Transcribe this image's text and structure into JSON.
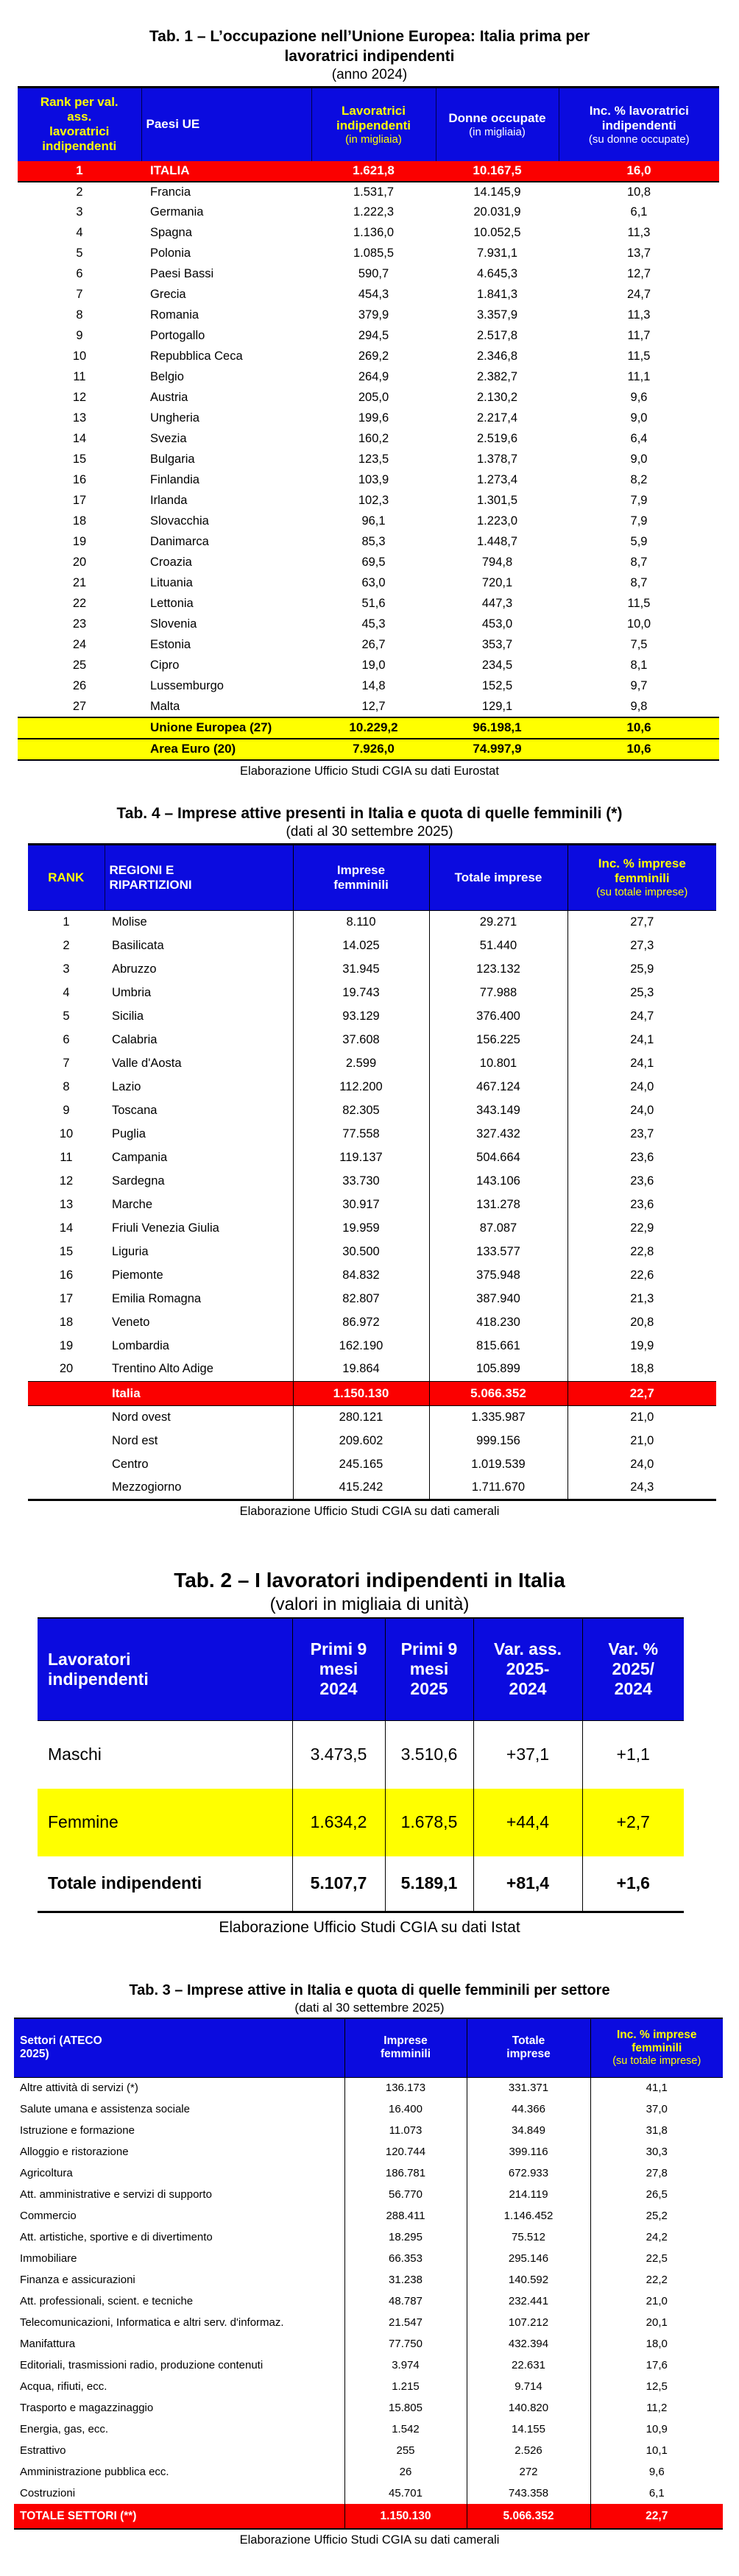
{
  "colors": {
    "blue": "#0b0bdf",
    "red": "#fb0000",
    "yellow": "#ffff00"
  },
  "tab1": {
    "title_line1": "Tab. 1 – L’occupazione nell’Unione Europea: Italia prima per",
    "title_line2": "lavoratrici indipendenti",
    "subtitle": "(anno 2024)",
    "header": {
      "rank": "Rank per val. ass. lavoratrici indipendenti",
      "country": "Paesi UE",
      "col3_main": "Lavoratrici indipendenti",
      "col3_sub": "(in migliaia)",
      "col4_main": "Donne occupate",
      "col4_sub": "(in migliaia)",
      "col5_main": "Inc. % lavoratrici indipendenti",
      "col5_sub": "(su donne occupate)"
    },
    "italia_row": {
      "rank": "1",
      "country": "ITALIA",
      "v1": "1.621,8",
      "v2": "10.167,5",
      "v3": "16,0"
    },
    "rows": [
      [
        "2",
        "Francia",
        "1.531,7",
        "14.145,9",
        "10,8"
      ],
      [
        "3",
        "Germania",
        "1.222,3",
        "20.031,9",
        "6,1"
      ],
      [
        "4",
        "Spagna",
        "1.136,0",
        "10.052,5",
        "11,3"
      ],
      [
        "5",
        "Polonia",
        "1.085,5",
        "7.931,1",
        "13,7"
      ],
      [
        "6",
        "Paesi Bassi",
        "590,7",
        "4.645,3",
        "12,7"
      ],
      [
        "7",
        "Grecia",
        "454,3",
        "1.841,3",
        "24,7"
      ],
      [
        "8",
        "Romania",
        "379,9",
        "3.357,9",
        "11,3"
      ],
      [
        "9",
        "Portogallo",
        "294,5",
        "2.517,8",
        "11,7"
      ],
      [
        "10",
        "Repubblica Ceca",
        "269,2",
        "2.346,8",
        "11,5"
      ],
      [
        "11",
        "Belgio",
        "264,9",
        "2.382,7",
        "11,1"
      ],
      [
        "12",
        "Austria",
        "205,0",
        "2.130,2",
        "9,6"
      ],
      [
        "13",
        "Ungheria",
        "199,6",
        "2.217,4",
        "9,0"
      ],
      [
        "14",
        "Svezia",
        "160,2",
        "2.519,6",
        "6,4"
      ],
      [
        "15",
        "Bulgaria",
        "123,5",
        "1.378,7",
        "9,0"
      ],
      [
        "16",
        "Finlandia",
        "103,9",
        "1.273,4",
        "8,2"
      ],
      [
        "17",
        "Irlanda",
        "102,3",
        "1.301,5",
        "7,9"
      ],
      [
        "18",
        "Slovacchia",
        "96,1",
        "1.223,0",
        "7,9"
      ],
      [
        "19",
        "Danimarca",
        "85,3",
        "1.448,7",
        "5,9"
      ],
      [
        "20",
        "Croazia",
        "69,5",
        "794,8",
        "8,7"
      ],
      [
        "21",
        "Lituania",
        "63,0",
        "720,1",
        "8,7"
      ],
      [
        "22",
        "Lettonia",
        "51,6",
        "447,3",
        "11,5"
      ],
      [
        "23",
        "Slovenia",
        "45,3",
        "453,0",
        "10,0"
      ],
      [
        "24",
        "Estonia",
        "26,7",
        "353,7",
        "7,5"
      ],
      [
        "25",
        "Cipro",
        "19,0",
        "234,5",
        "8,1"
      ],
      [
        "26",
        "Lussemburgo",
        "14,8",
        "152,5",
        "9,7"
      ],
      [
        "27",
        "Malta",
        "12,7",
        "129,1",
        "9,8"
      ]
    ],
    "totals": [
      [
        "",
        "Unione Europea (27)",
        "10.229,2",
        "96.198,1",
        "10,6"
      ],
      [
        "",
        "Area Euro (20)",
        "7.926,0",
        "74.997,9",
        "10,6"
      ]
    ],
    "footer": "Elaborazione Ufficio Studi CGIA su dati Eurostat"
  },
  "tab4": {
    "title": "Tab. 4 – Imprese attive presenti in Italia e quota di quelle femminili (*)",
    "subtitle": "(dati al 30 settembre 2025)",
    "header": {
      "rank": "RANK",
      "region": "REGIONI E RIPARTIZIONI",
      "col3_main": "Imprese femminili",
      "col4_main": "Totale imprese",
      "col5_main": "Inc. % imprese femminili",
      "col5_sub": "(su totale imprese)"
    },
    "rows": [
      [
        "1",
        "Molise",
        "8.110",
        "29.271",
        "27,7"
      ],
      [
        "2",
        "Basilicata",
        "14.025",
        "51.440",
        "27,3"
      ],
      [
        "3",
        "Abruzzo",
        "31.945",
        "123.132",
        "25,9"
      ],
      [
        "4",
        "Umbria",
        "19.743",
        "77.988",
        "25,3"
      ],
      [
        "5",
        "Sicilia",
        "93.129",
        "376.400",
        "24,7"
      ],
      [
        "6",
        "Calabria",
        "37.608",
        "156.225",
        "24,1"
      ],
      [
        "7",
        "Valle d'Aosta",
        "2.599",
        "10.801",
        "24,1"
      ],
      [
        "8",
        "Lazio",
        "112.200",
        "467.124",
        "24,0"
      ],
      [
        "9",
        "Toscana",
        "82.305",
        "343.149",
        "24,0"
      ],
      [
        "10",
        "Puglia",
        "77.558",
        "327.432",
        "23,7"
      ],
      [
        "11",
        "Campania",
        "119.137",
        "504.664",
        "23,6"
      ],
      [
        "12",
        "Sardegna",
        "33.730",
        "143.106",
        "23,6"
      ],
      [
        "13",
        "Marche",
        "30.917",
        "131.278",
        "23,6"
      ],
      [
        "14",
        "Friuli Venezia Giulia",
        "19.959",
        "87.087",
        "22,9"
      ],
      [
        "15",
        "Liguria",
        "30.500",
        "133.577",
        "22,8"
      ],
      [
        "16",
        "Piemonte",
        "84.832",
        "375.948",
        "22,6"
      ],
      [
        "17",
        "Emilia Romagna",
        "82.807",
        "387.940",
        "21,3"
      ],
      [
        "18",
        "Veneto",
        "86.972",
        "418.230",
        "20,8"
      ],
      [
        "19",
        "Lombardia",
        "162.190",
        "815.661",
        "19,9"
      ],
      [
        "20",
        "Trentino Alto Adige",
        "19.864",
        "105.899",
        "18,8"
      ]
    ],
    "italia_row": {
      "label": "Italia",
      "v1": "1.150.130",
      "v2": "5.066.352",
      "v3": "22,7"
    },
    "ripartizioni": [
      [
        "",
        "Nord ovest",
        "280.121",
        "1.335.987",
        "21,0"
      ],
      [
        "",
        "Nord est",
        "209.602",
        "999.156",
        "21,0"
      ],
      [
        "",
        "Centro",
        "245.165",
        "1.019.539",
        "24,0"
      ],
      [
        "",
        "Mezzogiorno",
        "415.242",
        "1.711.670",
        "24,3"
      ]
    ],
    "footer": "Elaborazione Ufficio Studi CGIA su dati camerali"
  },
  "tab2": {
    "title": "Tab. 2 – I lavoratori indipendenti in Italia",
    "subtitle": "(valori in migliaia di unità)",
    "header": {
      "col1": "Lavoratori indipendenti",
      "col2": "Primi 9 mesi 2024",
      "col3": "Primi 9 mesi 2025",
      "col4": "Var. ass. 2025-2024",
      "col5": "Var. % 2025/ 2024"
    },
    "rows": {
      "maschi": {
        "label": "Maschi",
        "v1": "3.473,5",
        "v2": "3.510,6",
        "v3": "+37,1",
        "v4": "+1,1"
      },
      "femmine": {
        "label": "Femmine",
        "v1": "1.634,2",
        "v2": "1.678,5",
        "v3": "+44,4",
        "v4": "+2,7"
      },
      "totale": {
        "label": "Totale indipendenti",
        "v1": "5.107,7",
        "v2": "5.189,1",
        "v3": "+81,4",
        "v4": "+1,6"
      }
    },
    "footer": "Elaborazione Ufficio Studi CGIA su dati Istat"
  },
  "tab3": {
    "title": "Tab. 3 – Imprese attive in Italia e quota di quelle femminili per settore",
    "subtitle": "(dati al 30 settembre 2025)",
    "header": {
      "col1": "Settori (ATECO 2025)",
      "col2_main": "Imprese femminili",
      "col3_main": "Totale imprese",
      "col4_main": "Inc. % imprese femminili",
      "col4_sub": "(su totale imprese)"
    },
    "rows": [
      [
        "Altre attività di servizi (*)",
        "136.173",
        "331.371",
        "41,1"
      ],
      [
        "Salute umana e assistenza sociale",
        "16.400",
        "44.366",
        "37,0"
      ],
      [
        "Istruzione e formazione",
        "11.073",
        "34.849",
        "31,8"
      ],
      [
        "Alloggio e ristorazione",
        "120.744",
        "399.116",
        "30,3"
      ],
      [
        "Agricoltura",
        "186.781",
        "672.933",
        "27,8"
      ],
      [
        "Att. amministrative e servizi di supporto",
        "56.770",
        "214.119",
        "26,5"
      ],
      [
        "Commercio",
        "288.411",
        "1.146.452",
        "25,2"
      ],
      [
        "Att. artistiche, sportive e di divertimento",
        "18.295",
        "75.512",
        "24,2"
      ],
      [
        "Immobiliare",
        "66.353",
        "295.146",
        "22,5"
      ],
      [
        "Finanza e assicurazioni",
        "31.238",
        "140.592",
        "22,2"
      ],
      [
        "Att. professionali, scient. e tecniche",
        "48.787",
        "232.441",
        "21,0"
      ],
      [
        "Telecomunicazioni, Informatica e altri serv. d'informaz.",
        "21.547",
        "107.212",
        "20,1"
      ],
      [
        "Manifattura",
        "77.750",
        "432.394",
        "18,0"
      ],
      [
        "Editoriali, trasmissioni radio, produzione contenuti",
        "3.974",
        "22.631",
        "17,6"
      ],
      [
        "Acqua, rifiuti, ecc.",
        "1.215",
        "9.714",
        "12,5"
      ],
      [
        "Trasporto e magazzinaggio",
        "15.805",
        "140.820",
        "11,2"
      ],
      [
        "Energia, gas, ecc.",
        "1.542",
        "14.155",
        "10,9"
      ],
      [
        "Estrattivo",
        "255",
        "2.526",
        "10,1"
      ],
      [
        "Amministrazione pubblica ecc.",
        "26",
        "272",
        "9,6"
      ],
      [
        "Costruzioni",
        "45.701",
        "743.358",
        "6,1"
      ]
    ],
    "total_row": {
      "label": "TOTALE SETTORI (**)",
      "v1": "1.150.130",
      "v2": "5.066.352",
      "v3": "22,7"
    },
    "footer": "Elaborazione Ufficio Studi CGIA su dati camerali"
  }
}
